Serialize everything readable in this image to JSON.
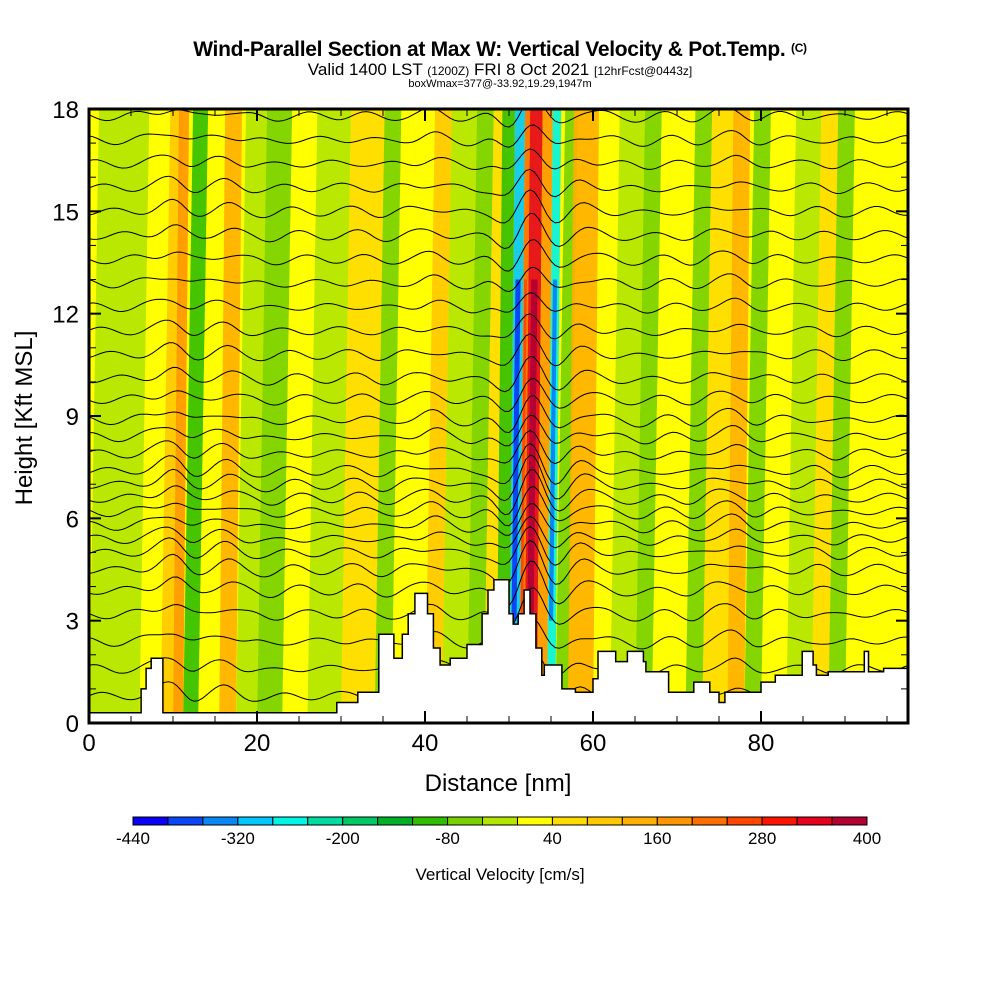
{
  "header": {
    "title": "Wind-Parallel Section at Max W: Vertical Velocity & Pot.Temp.",
    "copyright": "(C)",
    "valid_prefix": "Valid 1400 LST",
    "valid_utc": "(1200Z)",
    "valid_date": "FRI 8 Oct 2021",
    "forecast": "[12hrFcst@0443z]",
    "box_info": "boxWmax=377@-33.92,19.29,1947m"
  },
  "chart_data": {
    "type": "heatmap",
    "title": "Wind-Parallel Section at Max W: Vertical Velocity & Pot.Temp.",
    "subtitle": "Valid 1400 LST (1200Z) FRI 8 Oct 2021 [12hrFcst@0443z]",
    "annotation": "boxWmax=377@-33.92,19.29,1947m",
    "xlabel": "Distance [nm]",
    "ylabel": "Height [Kft MSL]",
    "xlim": [
      0,
      97.5
    ],
    "ylim": [
      0,
      18
    ],
    "xticks": [
      0,
      20,
      40,
      60,
      80
    ],
    "yticks": [
      0,
      3,
      6,
      9,
      12,
      15,
      18
    ],
    "x_minor_step": 5,
    "y_minor_step": 1,
    "colorbar": {
      "title": "Vertical Velocity [cm/s]",
      "min": -440,
      "max": 400,
      "step": 40,
      "tick_labels": [
        -440,
        -320,
        -200,
        -80,
        40,
        160,
        280,
        400
      ],
      "colors": [
        "#0a00f5",
        "#0a46f5",
        "#0a87f5",
        "#00c8ff",
        "#00f5e6",
        "#00dca0",
        "#00c864",
        "#00af28",
        "#32be00",
        "#78d200",
        "#b4e600",
        "#ffff00",
        "#ffdc00",
        "#ffc800",
        "#ffaf00",
        "#ff9600",
        "#ff6e00",
        "#ff4600",
        "#ff1400",
        "#e6001e",
        "#b40032"
      ]
    },
    "bands": [
      {
        "x": 0,
        "w": 6,
        "v": -20,
        "ytop": 18
      },
      {
        "x": 6,
        "w": 2.5,
        "v": 20
      },
      {
        "x": 8.5,
        "w": 1.5,
        "v": 80
      },
      {
        "x": 10,
        "w": 1.2,
        "v": 160
      },
      {
        "x": 11.2,
        "w": 1.8,
        "v": -100
      },
      {
        "x": 13,
        "w": 2.5,
        "v": 20
      },
      {
        "x": 15.5,
        "w": 2,
        "v": 120
      },
      {
        "x": 17.5,
        "w": 2.5,
        "v": -20
      },
      {
        "x": 20,
        "w": 3,
        "v": -60
      },
      {
        "x": 23,
        "w": 3,
        "v": 20
      },
      {
        "x": 26,
        "w": 4,
        "v": -20
      },
      {
        "x": 30,
        "w": 4,
        "v": 40
      },
      {
        "x": 34,
        "w": 2,
        "v": -60
      },
      {
        "x": 36,
        "w": 4,
        "v": 20
      },
      {
        "x": 40,
        "w": 2,
        "v": 100
      },
      {
        "x": 42,
        "w": 3,
        "v": -20
      },
      {
        "x": 45,
        "w": 2,
        "v": -60
      },
      {
        "x": 47,
        "w": 1.5,
        "v": 60
      },
      {
        "x": 48.5,
        "w": 1.5,
        "v": -120
      },
      {
        "x": 50,
        "w": 1.2,
        "v": -300
      },
      {
        "x": 51.2,
        "w": 0.6,
        "v": 200
      },
      {
        "x": 51.8,
        "w": 1.5,
        "v": 340
      },
      {
        "x": 53.3,
        "w": 1.2,
        "v": 160
      },
      {
        "x": 54.5,
        "w": 1,
        "v": -260
      },
      {
        "x": 55.5,
        "w": 1.5,
        "v": -60
      },
      {
        "x": 57,
        "w": 3,
        "v": 120
      },
      {
        "x": 60,
        "w": 2,
        "v": 20
      },
      {
        "x": 62,
        "w": 3,
        "v": -20
      },
      {
        "x": 65,
        "w": 2,
        "v": -60
      },
      {
        "x": 67,
        "w": 4,
        "v": 20
      },
      {
        "x": 71,
        "w": 2,
        "v": -60
      },
      {
        "x": 73,
        "w": 3,
        "v": 60
      },
      {
        "x": 76,
        "w": 2,
        "v": 120
      },
      {
        "x": 78,
        "w": 2,
        "v": -60
      },
      {
        "x": 80,
        "w": 3,
        "v": 20
      },
      {
        "x": 83,
        "w": 3,
        "v": -20
      },
      {
        "x": 86,
        "w": 2,
        "v": 40
      },
      {
        "x": 88,
        "w": 2,
        "v": -60
      },
      {
        "x": 90,
        "w": 7.5,
        "v": 20
      }
    ],
    "terrain_kft": [
      [
        0,
        0.3
      ],
      [
        6.2,
        0.3
      ],
      [
        6.2,
        1.0
      ],
      [
        6.8,
        1.0
      ],
      [
        6.8,
        1.6
      ],
      [
        7.4,
        1.6
      ],
      [
        7.4,
        1.9
      ],
      [
        8.8,
        1.9
      ],
      [
        8.8,
        0.3
      ],
      [
        29.5,
        0.3
      ],
      [
        29.5,
        0.6
      ],
      [
        32,
        0.6
      ],
      [
        32,
        0.9
      ],
      [
        34.5,
        0.9
      ],
      [
        34.5,
        2.6
      ],
      [
        36.3,
        2.6
      ],
      [
        36.3,
        1.9
      ],
      [
        37.3,
        1.9
      ],
      [
        37.3,
        2.6
      ],
      [
        38,
        2.6
      ],
      [
        38,
        3.2
      ],
      [
        38.8,
        3.2
      ],
      [
        38.8,
        3.8
      ],
      [
        40.3,
        3.8
      ],
      [
        40.3,
        3.2
      ],
      [
        41,
        3.2
      ],
      [
        41,
        2.2
      ],
      [
        41.8,
        2.2
      ],
      [
        41.8,
        1.7
      ],
      [
        43,
        1.7
      ],
      [
        43,
        1.9
      ],
      [
        45,
        1.9
      ],
      [
        45,
        2.3
      ],
      [
        46.8,
        2.3
      ],
      [
        46.8,
        3.2
      ],
      [
        47.5,
        3.2
      ],
      [
        47.5,
        3.9
      ],
      [
        48.2,
        3.9
      ],
      [
        48.2,
        4.2
      ],
      [
        50,
        4.2
      ],
      [
        50,
        3.2
      ],
      [
        50.5,
        3.2
      ],
      [
        50.5,
        2.9
      ],
      [
        51.1,
        2.9
      ],
      [
        51.1,
        3.2
      ],
      [
        51.8,
        3.2
      ],
      [
        51.8,
        3.9
      ],
      [
        52.5,
        3.9
      ],
      [
        52.5,
        3.2
      ],
      [
        53.2,
        3.2
      ],
      [
        53.2,
        2.2
      ],
      [
        53.9,
        2.2
      ],
      [
        53.9,
        1.4
      ],
      [
        54.2,
        1.4
      ],
      [
        54.2,
        1.7
      ],
      [
        56.3,
        1.7
      ],
      [
        56.3,
        1.0
      ],
      [
        57.9,
        1.0
      ],
      [
        57.9,
        0.9
      ],
      [
        60,
        0.9
      ],
      [
        60,
        1.3
      ],
      [
        60.6,
        1.3
      ],
      [
        60.6,
        2.1
      ],
      [
        62.7,
        2.1
      ],
      [
        62.7,
        1.8
      ],
      [
        64.1,
        1.8
      ],
      [
        64.1,
        2.1
      ],
      [
        66,
        2.1
      ],
      [
        66,
        1.8
      ],
      [
        66.3,
        1.8
      ],
      [
        66.3,
        1.5
      ],
      [
        69,
        1.5
      ],
      [
        69,
        0.9
      ],
      [
        72,
        0.9
      ],
      [
        72,
        1.2
      ],
      [
        73.9,
        1.2
      ],
      [
        73.9,
        0.9
      ],
      [
        75,
        0.9
      ],
      [
        75,
        0.6
      ],
      [
        75.7,
        0.6
      ],
      [
        75.7,
        0.9
      ],
      [
        80,
        0.9
      ],
      [
        80,
        1.2
      ],
      [
        81.7,
        1.2
      ],
      [
        81.7,
        1.4
      ],
      [
        84.9,
        1.4
      ],
      [
        84.9,
        2.1
      ],
      [
        86.2,
        2.1
      ],
      [
        86.2,
        1.7
      ],
      [
        86.6,
        1.7
      ],
      [
        86.6,
        1.4
      ],
      [
        88,
        1.4
      ],
      [
        88,
        1.5
      ],
      [
        92.3,
        1.5
      ],
      [
        92.3,
        2.1
      ],
      [
        92.8,
        2.1
      ],
      [
        92.8,
        1.5
      ],
      [
        94.6,
        1.5
      ],
      [
        94.6,
        1.6
      ],
      [
        97.5,
        1.6
      ],
      [
        97.5,
        0
      ]
    ],
    "theta_contours": {
      "base_heights_kft": [
        0.8,
        1.6,
        2.4,
        3.2,
        3.9,
        4.5,
        5.0,
        5.4,
        5.8,
        6.2,
        6.6,
        7.0,
        7.4,
        7.9,
        8.4,
        8.9,
        9.5,
        10.1,
        10.8,
        11.5,
        12.2,
        12.9,
        13.6,
        14.3,
        15.0,
        15.7,
        16.4,
        17.1,
        17.8
      ]
    }
  }
}
